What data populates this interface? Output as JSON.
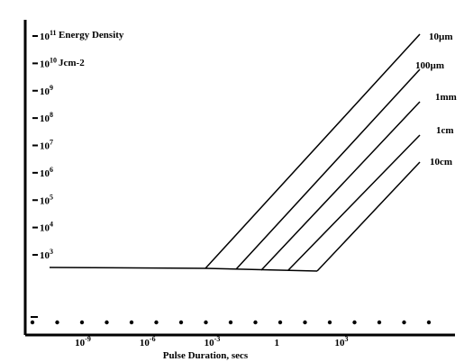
{
  "chart_data": {
    "type": "line",
    "xlabel": "Pulse Duration, secs",
    "ylabel_lines": [
      "Energy Density",
      "Jcm-2"
    ],
    "x_scale": "log",
    "y_scale": "log",
    "xlim": [
      1e-11,
      10000
    ],
    "ylim": [
      10,
      100000000000.0
    ],
    "x_ticks": [
      {
        "base": "10",
        "exp": "-9",
        "value": 1e-09
      },
      {
        "base": "10",
        "exp": "-6",
        "value": 1e-06
      },
      {
        "base": "10",
        "exp": "-3",
        "value": 0.001
      },
      {
        "base": "1",
        "exp": "",
        "value": 1
      },
      {
        "base": "10",
        "exp": "3",
        "value": 1000
      }
    ],
    "y_ticks": [
      {
        "base": "10",
        "exp": "11",
        "value": 100000000000.0
      },
      {
        "base": "10",
        "exp": "10",
        "value": 10000000000.0
      },
      {
        "base": "10",
        "exp": "9",
        "value": 1000000000.0
      },
      {
        "base": "10",
        "exp": "8",
        "value": 100000000.0
      },
      {
        "base": "10",
        "exp": "7",
        "value": 10000000.0
      },
      {
        "base": "10",
        "exp": "6",
        "value": 1000000.0
      },
      {
        "base": "10",
        "exp": "5",
        "value": 100000.0
      },
      {
        "base": "10",
        "exp": "4",
        "value": 10000.0
      },
      {
        "base": "10",
        "exp": "3",
        "value": 1000.0
      }
    ],
    "series": [
      {
        "name": "10µm",
        "x": [
          1e-10,
          1e-06
        ],
        "y": [
          3000,
          3000
        ],
        "x2": 3000,
        "y2": 100000000000.0
      },
      {
        "name": "100µm",
        "x": [
          3e-05,
          3e-05
        ],
        "y": [
          2900,
          2900
        ],
        "x2": 3000,
        "y2": 10000000000.0
      },
      {
        "name": "1mm",
        "x": [
          0.0003,
          0.0003
        ],
        "y": [
          2850,
          2850
        ],
        "x2": 3000,
        "y2": 1000000000.0
      },
      {
        "name": "1cm",
        "x": [
          0.003,
          0.003
        ],
        "y": [
          2800,
          2800
        ],
        "x2": 3000,
        "y2": 100000000.0
      },
      {
        "name": "10cm",
        "x": [
          0.1,
          0.1
        ],
        "y": [
          2700,
          2700
        ],
        "x2": 3000,
        "y2": 10000000.0
      }
    ],
    "baseline": {
      "x": [
        1e-10,
        0.1
      ],
      "y": [
        3000,
        2700
      ]
    },
    "grid": false,
    "legend": "inline-right"
  }
}
